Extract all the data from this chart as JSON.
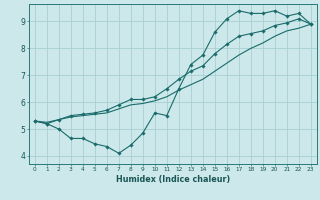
{
  "xlabel": "Humidex (Indice chaleur)",
  "bg_color": "#cce8ea",
  "grid_color": "#a8d0d2",
  "line_color": "#1a6b6b",
  "xlim": [
    -0.5,
    23.5
  ],
  "ylim": [
    3.7,
    9.65
  ],
  "yticks": [
    4,
    5,
    6,
    7,
    8,
    9
  ],
  "xticks": [
    0,
    1,
    2,
    3,
    4,
    5,
    6,
    7,
    8,
    9,
    10,
    11,
    12,
    13,
    14,
    15,
    16,
    17,
    18,
    19,
    20,
    21,
    22,
    23
  ],
  "line1_x": [
    0,
    1,
    2,
    3,
    4,
    5,
    6,
    7,
    8,
    9,
    10,
    11,
    12,
    13,
    14,
    15,
    16,
    17,
    18,
    19,
    20,
    21,
    22,
    23
  ],
  "line1_y": [
    5.3,
    5.2,
    5.0,
    4.65,
    4.65,
    4.45,
    4.35,
    4.1,
    4.4,
    4.85,
    5.6,
    5.5,
    6.5,
    7.4,
    7.75,
    8.6,
    9.1,
    9.4,
    9.3,
    9.3,
    9.4,
    9.2,
    9.3,
    8.9
  ],
  "line2_x": [
    0,
    1,
    2,
    3,
    4,
    5,
    6,
    7,
    8,
    9,
    10,
    11,
    12,
    13,
    14,
    15,
    16,
    17,
    18,
    19,
    20,
    21,
    22,
    23
  ],
  "line2_y": [
    5.3,
    5.25,
    5.35,
    5.45,
    5.5,
    5.55,
    5.6,
    5.75,
    5.9,
    5.95,
    6.05,
    6.2,
    6.45,
    6.65,
    6.85,
    7.15,
    7.45,
    7.75,
    8.0,
    8.2,
    8.45,
    8.65,
    8.75,
    8.9
  ],
  "line3_x": [
    0,
    1,
    2,
    3,
    4,
    5,
    6,
    7,
    8,
    9,
    10,
    11,
    12,
    13,
    14,
    15,
    16,
    17,
    18,
    19,
    20,
    21,
    22,
    23
  ],
  "line3_y": [
    5.3,
    5.2,
    5.35,
    5.5,
    5.55,
    5.6,
    5.7,
    5.9,
    6.1,
    6.1,
    6.2,
    6.5,
    6.85,
    7.15,
    7.35,
    7.8,
    8.15,
    8.45,
    8.55,
    8.65,
    8.85,
    8.95,
    9.1,
    8.9
  ]
}
